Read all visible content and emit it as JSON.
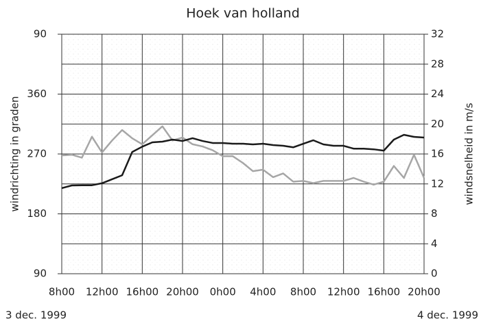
{
  "chart_data": {
    "type": "line",
    "title": "Hoek van holland",
    "ylabel": "windrichting in graden",
    "y2label": "windsnelheid in m/s",
    "annotations": [
      "3 dec. 1999",
      "4 dec. 1999"
    ],
    "x": [
      0,
      1,
      2,
      3,
      4,
      5,
      6,
      7,
      8,
      9,
      10,
      11,
      12,
      13,
      14,
      15,
      16,
      17,
      18,
      19,
      20,
      21,
      22,
      23,
      24,
      25,
      26,
      27,
      28,
      29,
      30,
      31,
      32,
      33,
      34,
      35,
      36
    ],
    "series": [
      {
        "color": "#1a1a1a",
        "values": [
          218.6,
          222.7,
          223,
          223,
          226,
          232,
          238,
          273,
          281,
          287.5,
          288.5,
          291.6,
          289.5,
          293.7,
          289.5,
          286.5,
          286.5,
          285.4,
          285.4,
          284.4,
          285.4,
          283.4,
          282.3,
          280,
          285.4,
          290.6,
          284.4,
          282.3,
          282.3,
          278,
          278,
          277,
          275,
          291.6,
          298.8,
          295.7,
          294.7
        ]
      },
      {
        "color": "#a6a6a6",
        "axis": "y2",
        "values": [
          15.8,
          15.9,
          15.5,
          18.3,
          16.2,
          17.8,
          19.2,
          18.1,
          17.3,
          18.5,
          19.7,
          17.8,
          18.2,
          17.3,
          17,
          16.5,
          15.7,
          15.7,
          14.8,
          13.7,
          13.9,
          12.9,
          13.4,
          12.3,
          12.4,
          12.1,
          12.4,
          12.4,
          12.4,
          12.8,
          12.3,
          11.9,
          12.3,
          14.4,
          12.8,
          15.9,
          12.8
        ]
      }
    ],
    "xlim": [
      0,
      36
    ],
    "xticks": [
      {
        "value": 0,
        "label": "8h00"
      },
      {
        "value": 4,
        "label": "12h00"
      },
      {
        "value": 8,
        "label": "16h00"
      },
      {
        "value": 12,
        "label": "20h00"
      },
      {
        "value": 16,
        "label": "0h00"
      },
      {
        "value": 20,
        "label": "4h00"
      },
      {
        "value": 24,
        "label": "8h00"
      },
      {
        "value": 28,
        "label": "12h00"
      },
      {
        "value": 32,
        "label": "16h00"
      },
      {
        "value": 36,
        "label": "20h00"
      }
    ],
    "ylim": [
      90,
      450
    ],
    "yticks": [
      90,
      180,
      270,
      360,
      {
        "value": 450,
        "label": "90"
      }
    ],
    "y2lim": [
      0,
      32
    ],
    "y2ticks": [
      0,
      4,
      8,
      12,
      16,
      20,
      24,
      28,
      32
    ],
    "grid": true
  }
}
